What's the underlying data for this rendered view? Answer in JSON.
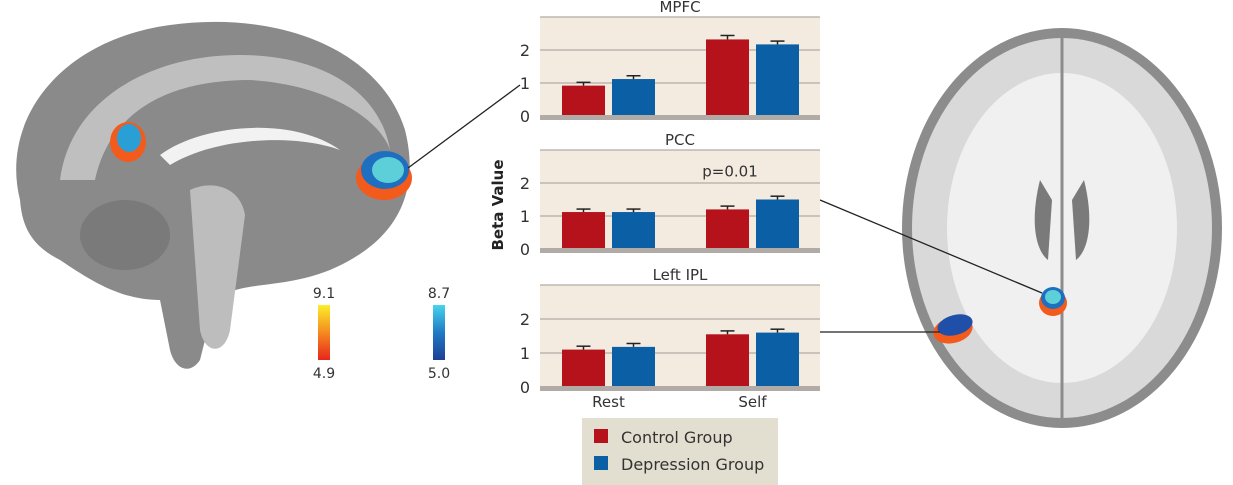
{
  "chart_data": [
    {
      "type": "bar",
      "title": "MPFC",
      "categories": [
        "Rest",
        "Self"
      ],
      "ylim": [
        0,
        3
      ],
      "yticks": [
        0,
        1,
        2
      ],
      "series": [
        {
          "name": "Control Group",
          "values": [
            0.92,
            2.32
          ],
          "errors": [
            0.1,
            0.12
          ]
        },
        {
          "name": "Depression Group",
          "values": [
            1.12,
            2.17
          ],
          "errors": [
            0.1,
            0.1
          ]
        }
      ]
    },
    {
      "type": "bar",
      "title": "PCC",
      "categories": [
        "Rest",
        "Self"
      ],
      "ylim": [
        0,
        3
      ],
      "yticks": [
        0,
        1,
        2
      ],
      "annotation": "p=0.01",
      "series": [
        {
          "name": "Control Group",
          "values": [
            1.12,
            1.2
          ],
          "errors": [
            0.09,
            0.1
          ]
        },
        {
          "name": "Depression Group",
          "values": [
            1.12,
            1.5
          ],
          "errors": [
            0.09,
            0.1
          ]
        }
      ]
    },
    {
      "type": "bar",
      "title": "Left IPL",
      "categories": [
        "Rest",
        "Self"
      ],
      "ylim": [
        0,
        3
      ],
      "yticks": [
        0,
        1,
        2
      ],
      "series": [
        {
          "name": "Control Group",
          "values": [
            1.1,
            1.55
          ],
          "errors": [
            0.1,
            0.1
          ]
        },
        {
          "name": "Depression Group",
          "values": [
            1.18,
            1.6
          ],
          "errors": [
            0.1,
            0.1
          ]
        }
      ]
    }
  ],
  "ylabel": "Beta Value",
  "legend": {
    "items": [
      "Control Group",
      "Depression Group"
    ],
    "placement": "bottom"
  },
  "colors": {
    "control": "#b5121b",
    "depression": "#0b5fa5",
    "panel_bg": "#f3ebe0",
    "legend_bg": "#e2dfd0",
    "axis": "#b0aba6"
  },
  "colorbars": {
    "warm": {
      "max": "9.1",
      "min": "4.9"
    },
    "cool": {
      "max": "8.7",
      "min": "5.0"
    }
  }
}
